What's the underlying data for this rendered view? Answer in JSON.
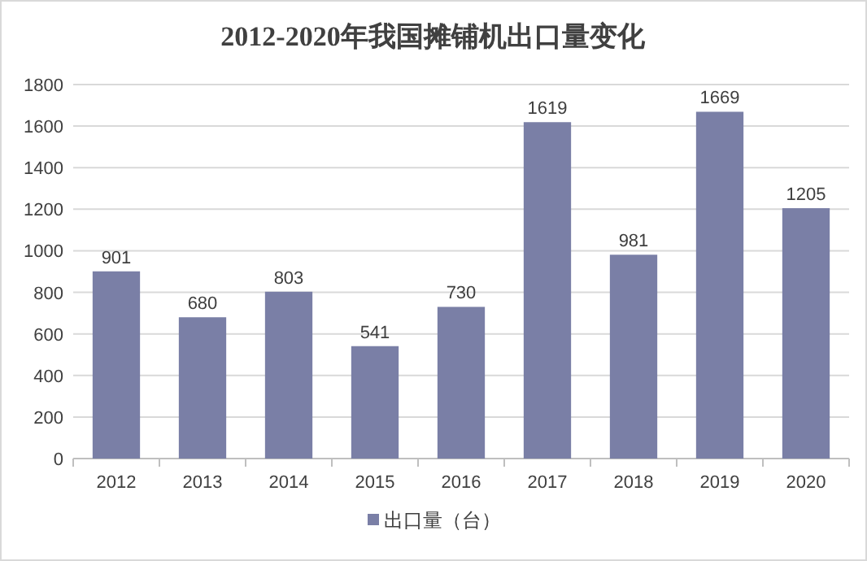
{
  "chart_data": {
    "type": "bar",
    "title": "2012-2020年我国摊铺机出口量变化",
    "categories": [
      "2012",
      "2013",
      "2014",
      "2015",
      "2016",
      "2017",
      "2018",
      "2019",
      "2020"
    ],
    "series": [
      {
        "name": "出口量（台）",
        "color": "#7a7fa6",
        "values": [
          901,
          680,
          803,
          541,
          730,
          1619,
          981,
          1669,
          1205
        ]
      }
    ],
    "ylim": [
      0,
      1800
    ],
    "yticks": [
      0,
      200,
      400,
      600,
      800,
      1000,
      1200,
      1400,
      1600,
      1800
    ],
    "grid": "y",
    "legend": "bottom",
    "data_labels": true
  }
}
